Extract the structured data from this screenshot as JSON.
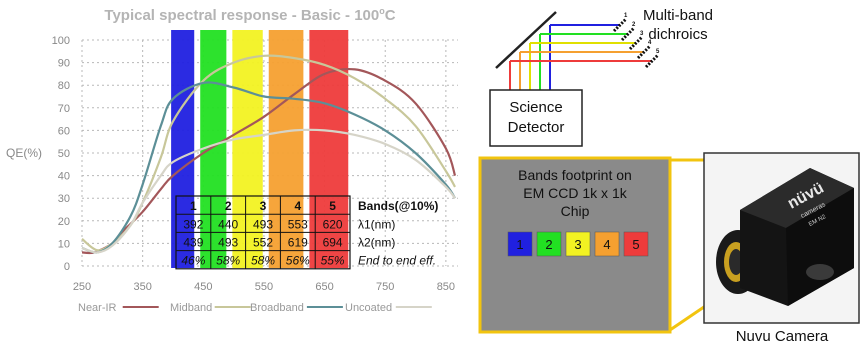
{
  "chart": {
    "title": "Typical spectral response - Basic - 100oC",
    "title_main": "Typical spectral response - Basic - 100",
    "title_sup": "o",
    "title_end": "C",
    "ylabel": "QE(%)"
  },
  "chart_data": {
    "type": "line",
    "title": "Typical spectral response - Basic - 100oC",
    "xlabel": "",
    "ylabel": "QE(%)",
    "xlim": [
      250,
      870
    ],
    "ylim": [
      0,
      100
    ],
    "x_ticks": [
      250,
      350,
      450,
      550,
      650,
      750,
      850
    ],
    "y_ticks": [
      0,
      10,
      20,
      30,
      40,
      50,
      60,
      70,
      80,
      90,
      100
    ],
    "grid": true,
    "legend_position": "bottom",
    "series": [
      {
        "name": "Near-IR",
        "color": "#a3575a",
        "x": [
          250,
          270,
          300,
          320,
          350,
          380,
          400,
          450,
          500,
          550,
          600,
          650,
          700,
          750,
          800,
          850,
          865
        ],
        "y": [
          6,
          6,
          10,
          16,
          24,
          34,
          40,
          50,
          58,
          66,
          76,
          85,
          87,
          82,
          72,
          52,
          40
        ]
      },
      {
        "name": "Midband",
        "color": "#c8c79a",
        "x": [
          250,
          275,
          300,
          330,
          350,
          380,
          400,
          450,
          500,
          550,
          600,
          650,
          700,
          750,
          800,
          850,
          865
        ],
        "y": [
          12,
          7,
          10,
          18,
          28,
          48,
          64,
          82,
          90,
          93,
          92,
          89,
          83,
          74,
          62,
          42,
          35
        ]
      },
      {
        "name": "Broadband",
        "color": "#5c8f97",
        "x": [
          250,
          275,
          300,
          330,
          350,
          380,
          400,
          450,
          500,
          550,
          600,
          650,
          700,
          750,
          800,
          850,
          865
        ],
        "y": [
          8,
          6,
          10,
          22,
          36,
          62,
          74,
          81,
          79,
          75,
          74,
          72,
          67,
          60,
          50,
          36,
          30
        ]
      },
      {
        "name": "Uncoated",
        "color": "#d6d4c8",
        "x": [
          250,
          275,
          300,
          330,
          350,
          380,
          400,
          450,
          500,
          550,
          600,
          650,
          700,
          750,
          800,
          850,
          865
        ],
        "y": [
          8,
          6,
          9,
          18,
          28,
          40,
          46,
          52,
          56,
          58,
          60,
          60,
          58,
          54,
          47,
          35,
          30
        ]
      }
    ],
    "bands": [
      {
        "label": "1",
        "color": "#2020e0",
        "lambda1": 392,
        "lambda2": 439,
        "eff": "46%"
      },
      {
        "label": "2",
        "color": "#22e022",
        "lambda1": 440,
        "lambda2": 493,
        "eff": "58%"
      },
      {
        "label": "3",
        "color": "#f2f222",
        "lambda1": 493,
        "lambda2": 552,
        "eff": "58%"
      },
      {
        "label": "4",
        "color": "#f5a030",
        "lambda1": 553,
        "lambda2": 619,
        "eff": "56%"
      },
      {
        "label": "5",
        "color": "#ee3b3b",
        "lambda1": 620,
        "lambda2": 694,
        "eff": "55%"
      }
    ]
  },
  "band_table": {
    "row_labels": [
      "Bands(@10%)",
      "λ1(nm)",
      "λ2(nm)",
      "End to end eff."
    ]
  },
  "diagram": {
    "dichroics_line1": "Multi-band",
    "dichroics_line2": "dichroics",
    "dichroic_numbers": [
      "1",
      "2",
      "3",
      "4",
      "5"
    ],
    "detector_line1": "Science",
    "detector_line2": "Detector",
    "beam_colors": [
      "#2020e0",
      "#22e022",
      "#e0e000",
      "#f5a030",
      "#ee3b3b"
    ]
  },
  "footprint": {
    "line1": "Bands footprint on",
    "line2": "EM CCD 1k x 1k",
    "line3": "Chip",
    "border_color": "#f2c40f",
    "panel_color": "#8a8a8a"
  },
  "camera": {
    "brand": "nüvü",
    "sub1": "cameras",
    "sub2": "EM N2",
    "caption": "Nuvu Camera"
  }
}
